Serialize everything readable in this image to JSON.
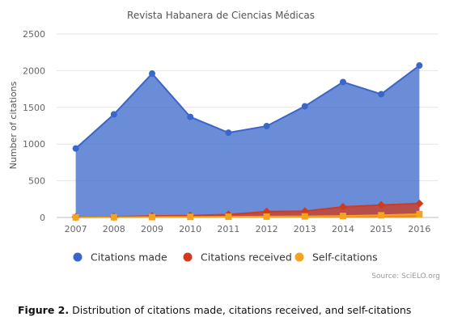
{
  "chart_data": {
    "type": "area",
    "title": "Revista Habanera de Ciencias Médicas",
    "ylabel": "Number of citations",
    "xlabel": "",
    "categories": [
      "2007",
      "2008",
      "2009",
      "2010",
      "2011",
      "2012",
      "2013",
      "2014",
      "2015",
      "2016"
    ],
    "ylim": [
      0,
      2500
    ],
    "yticks": [
      "0",
      "500",
      "1000",
      "1500",
      "2000",
      "2500"
    ],
    "grid": true,
    "legend_position": "bottom",
    "series": [
      {
        "name": "Citations made",
        "color": "#3a66c9",
        "marker": "circle",
        "values": [
          940,
          1405,
          1960,
          1370,
          1155,
          1245,
          1515,
          1845,
          1680,
          2070
        ]
      },
      {
        "name": "Citations received",
        "color": "#d23a1e",
        "marker": "diamond",
        "values": [
          5,
          8,
          20,
          25,
          40,
          80,
          85,
          145,
          170,
          190
        ]
      },
      {
        "name": "Self-citations",
        "color": "#f5a31f",
        "marker": "square",
        "values": [
          2,
          3,
          5,
          8,
          10,
          12,
          15,
          20,
          30,
          45
        ]
      }
    ],
    "source": "Source: SciELO.org"
  },
  "caption": {
    "label": "Figure 2.",
    "text": " Distribution of citations made, citations received, and self-citations"
  }
}
